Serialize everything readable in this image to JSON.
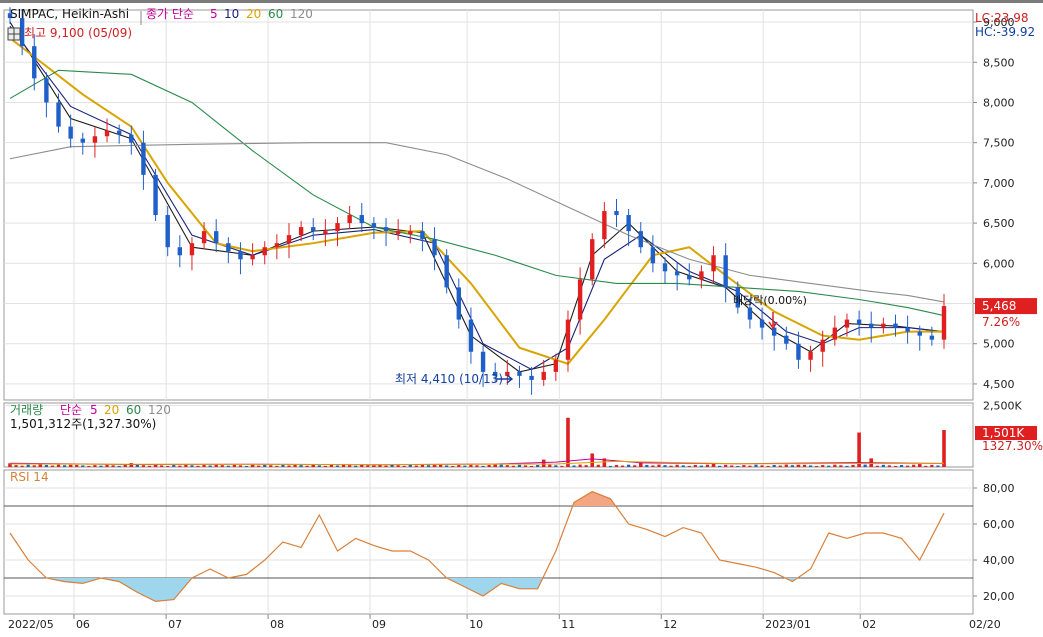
{
  "chart_data": [
    {
      "type": "candlestick",
      "panel": "price",
      "legend": {
        "symbol": "SIMPAC, Heikin-Ashi",
        "ma_title": "종가 단순",
        "ma_periods": [
          "5",
          "10",
          "20",
          "60",
          "120"
        ]
      },
      "top_right": {
        "lc": "LC:23.98",
        "hc": "HC:-39.92"
      },
      "annotations": {
        "high": "최고 9,100 (05/09)",
        "low": "최저 4,410 (10/13)",
        "marker": "배당락(0.00%)"
      },
      "current_price": {
        "value": "5,468",
        "change": "7.26%"
      },
      "y_ticks": [
        "9,000",
        "8,500",
        "8,000",
        "7,500",
        "7,000",
        "6,500",
        "6,000",
        "5,500",
        "5,000",
        "4,500"
      ],
      "ylim": [
        4300,
        9150
      ],
      "candles_close": [
        [
          0,
          9050
        ],
        [
          2,
          8700
        ],
        [
          4,
          8300
        ],
        [
          6,
          8000
        ],
        [
          8,
          7700
        ],
        [
          10,
          7550
        ],
        [
          12,
          7500
        ],
        [
          14,
          7580
        ],
        [
          16,
          7650
        ],
        [
          18,
          7600
        ],
        [
          20,
          7500
        ],
        [
          22,
          7100
        ],
        [
          24,
          6600
        ],
        [
          26,
          6200
        ],
        [
          28,
          6100
        ],
        [
          30,
          6250
        ],
        [
          32,
          6400
        ],
        [
          34,
          6250
        ],
        [
          36,
          6150
        ],
        [
          38,
          6050
        ],
        [
          40,
          6100
        ],
        [
          42,
          6200
        ],
        [
          44,
          6250
        ],
        [
          46,
          6350
        ],
        [
          48,
          6450
        ],
        [
          50,
          6400
        ],
        [
          52,
          6400
        ],
        [
          54,
          6500
        ],
        [
          56,
          6600
        ],
        [
          58,
          6500
        ],
        [
          60,
          6450
        ],
        [
          62,
          6400
        ],
        [
          64,
          6400
        ],
        [
          66,
          6400
        ],
        [
          68,
          6300
        ],
        [
          70,
          6100
        ],
        [
          72,
          5700
        ],
        [
          74,
          5300
        ],
        [
          76,
          4900
        ],
        [
          78,
          4650
        ],
        [
          80,
          4600
        ],
        [
          82,
          4650
        ],
        [
          84,
          4600
        ],
        [
          86,
          4550
        ],
        [
          88,
          4650
        ],
        [
          90,
          4800
        ],
        [
          92,
          5300
        ],
        [
          94,
          5800
        ],
        [
          96,
          6300
        ],
        [
          98,
          6650
        ],
        [
          100,
          6600
        ],
        [
          102,
          6400
        ],
        [
          104,
          6200
        ],
        [
          106,
          6000
        ],
        [
          108,
          5900
        ],
        [
          110,
          5850
        ],
        [
          112,
          5800
        ],
        [
          114,
          5900
        ],
        [
          116,
          6100
        ],
        [
          118,
          5700
        ],
        [
          120,
          5450
        ],
        [
          122,
          5300
        ],
        [
          124,
          5200
        ],
        [
          126,
          5100
        ],
        [
          128,
          5000
        ],
        [
          130,
          4800
        ],
        [
          132,
          4900
        ],
        [
          134,
          5050
        ],
        [
          136,
          5200
        ],
        [
          138,
          5300
        ],
        [
          140,
          5250
        ],
        [
          142,
          5200
        ],
        [
          144,
          5250
        ],
        [
          146,
          5200
        ],
        [
          148,
          5150
        ],
        [
          150,
          5100
        ],
        [
          152,
          5050
        ],
        [
          154,
          5468
        ]
      ],
      "ma_series": [
        {
          "name": "5",
          "color": "#1c1c1c",
          "values": [
            [
              0,
              9000
            ],
            [
              10,
              7800
            ],
            [
              20,
              7550
            ],
            [
              30,
              6200
            ],
            [
              40,
              6100
            ],
            [
              50,
              6400
            ],
            [
              60,
              6450
            ],
            [
              68,
              6380
            ],
            [
              76,
              5100
            ],
            [
              84,
              4650
            ],
            [
              90,
              4750
            ],
            [
              96,
              6100
            ],
            [
              102,
              6500
            ],
            [
              110,
              5900
            ],
            [
              118,
              5700
            ],
            [
              126,
              5150
            ],
            [
              132,
              4900
            ],
            [
              138,
              5250
            ],
            [
              146,
              5220
            ],
            [
              154,
              5150
            ]
          ]
        },
        {
          "name": "10",
          "color": "#1a237e",
          "values": [
            [
              0,
              8950
            ],
            [
              10,
              7950
            ],
            [
              20,
              7600
            ],
            [
              30,
              6350
            ],
            [
              40,
              6100
            ],
            [
              50,
              6350
            ],
            [
              60,
              6420
            ],
            [
              70,
              6250
            ],
            [
              78,
              5000
            ],
            [
              86,
              4680
            ],
            [
              92,
              4950
            ],
            [
              98,
              6050
            ],
            [
              104,
              6350
            ],
            [
              112,
              5900
            ],
            [
              120,
              5650
            ],
            [
              128,
              5150
            ],
            [
              134,
              5000
            ],
            [
              140,
              5200
            ],
            [
              148,
              5200
            ],
            [
              154,
              5150
            ]
          ]
        },
        {
          "name": "20",
          "color": "#d8a400",
          "values": [
            [
              0,
              8800
            ],
            [
              12,
              8100
            ],
            [
              20,
              7700
            ],
            [
              26,
              7000
            ],
            [
              34,
              6250
            ],
            [
              40,
              6150
            ],
            [
              50,
              6250
            ],
            [
              60,
              6380
            ],
            [
              68,
              6400
            ],
            [
              76,
              5750
            ],
            [
              84,
              4950
            ],
            [
              92,
              4750
            ],
            [
              98,
              5300
            ],
            [
              106,
              6100
            ],
            [
              112,
              6200
            ],
            [
              118,
              5850
            ],
            [
              126,
              5400
            ],
            [
              134,
              5100
            ],
            [
              140,
              5050
            ],
            [
              148,
              5150
            ],
            [
              154,
              5150
            ]
          ]
        },
        {
          "name": "60",
          "color": "#2a8a4a",
          "values": [
            [
              0,
              8050
            ],
            [
              8,
              8400
            ],
            [
              20,
              8350
            ],
            [
              30,
              8000
            ],
            [
              40,
              7400
            ],
            [
              50,
              6850
            ],
            [
              60,
              6450
            ],
            [
              70,
              6300
            ],
            [
              80,
              6100
            ],
            [
              90,
              5850
            ],
            [
              100,
              5750
            ],
            [
              110,
              5750
            ],
            [
              120,
              5700
            ],
            [
              130,
              5650
            ],
            [
              140,
              5550
            ],
            [
              148,
              5450
            ],
            [
              154,
              5350
            ]
          ]
        },
        {
          "name": "120",
          "color": "#8c8c8c",
          "values": [
            [
              0,
              7300
            ],
            [
              10,
              7450
            ],
            [
              30,
              7480
            ],
            [
              50,
              7500
            ],
            [
              62,
              7500
            ],
            [
              72,
              7350
            ],
            [
              82,
              7050
            ],
            [
              92,
              6700
            ],
            [
              102,
              6350
            ],
            [
              112,
              6050
            ],
            [
              122,
              5850
            ],
            [
              132,
              5750
            ],
            [
              142,
              5650
            ],
            [
              148,
              5600
            ],
            [
              154,
              5520
            ]
          ]
        }
      ]
    },
    {
      "type": "bar",
      "panel": "volume",
      "legend": {
        "title": "거래량",
        "ma_title": "단순",
        "ma_periods": [
          "5",
          "20",
          "60",
          "120"
        ],
        "value": "1,501,312주(1,327.30%)"
      },
      "y_ticks": [
        "2,500K"
      ],
      "ylim": [
        0,
        2600
      ],
      "current": {
        "value": "1,501K",
        "pct": "1327.30%"
      },
      "spikes": [
        [
          0,
          150
        ],
        [
          5,
          120
        ],
        [
          10,
          90
        ],
        [
          20,
          160
        ],
        [
          24,
          90
        ],
        [
          40,
          100
        ],
        [
          50,
          80
        ],
        [
          60,
          60
        ],
        [
          70,
          80
        ],
        [
          80,
          100
        ],
        [
          88,
          300
        ],
        [
          92,
          2000
        ],
        [
          96,
          550
        ],
        [
          98,
          350
        ],
        [
          104,
          200
        ],
        [
          116,
          150
        ],
        [
          130,
          90
        ],
        [
          140,
          1400
        ],
        [
          142,
          350
        ],
        [
          150,
          120
        ],
        [
          154,
          1501
        ]
      ]
    },
    {
      "type": "line",
      "panel": "rsi",
      "legend": {
        "title": "RSI 14"
      },
      "y_ticks": [
        "80,00",
        "60,00",
        "40,00",
        "20,00"
      ],
      "ylim": [
        10,
        90
      ],
      "levels": [
        70,
        30
      ],
      "values": [
        [
          0,
          55
        ],
        [
          3,
          40
        ],
        [
          6,
          30
        ],
        [
          9,
          28
        ],
        [
          12,
          27
        ],
        [
          15,
          30
        ],
        [
          18,
          28
        ],
        [
          21,
          22
        ],
        [
          24,
          17
        ],
        [
          27,
          18
        ],
        [
          30,
          30
        ],
        [
          33,
          35
        ],
        [
          36,
          30
        ],
        [
          39,
          32
        ],
        [
          42,
          40
        ],
        [
          45,
          50
        ],
        [
          48,
          47
        ],
        [
          51,
          65
        ],
        [
          54,
          45
        ],
        [
          57,
          52
        ],
        [
          60,
          48
        ],
        [
          63,
          45
        ],
        [
          66,
          45
        ],
        [
          69,
          40
        ],
        [
          72,
          30
        ],
        [
          75,
          25
        ],
        [
          78,
          20
        ],
        [
          81,
          27
        ],
        [
          84,
          24
        ],
        [
          87,
          24
        ],
        [
          90,
          45
        ],
        [
          93,
          72
        ],
        [
          96,
          78
        ],
        [
          99,
          74
        ],
        [
          102,
          60
        ],
        [
          105,
          57
        ],
        [
          108,
          53
        ],
        [
          111,
          58
        ],
        [
          114,
          55
        ],
        [
          117,
          40
        ],
        [
          120,
          38
        ],
        [
          123,
          36
        ],
        [
          126,
          33
        ],
        [
          129,
          28
        ],
        [
          132,
          35
        ],
        [
          135,
          55
        ],
        [
          138,
          52
        ],
        [
          141,
          55
        ],
        [
          144,
          55
        ],
        [
          147,
          52
        ],
        [
          150,
          40
        ],
        [
          154,
          66
        ]
      ]
    }
  ],
  "x_ticks": [
    {
      "label": "2022/05",
      "x": 0
    },
    {
      "label": "06",
      "x": 14
    },
    {
      "label": "07",
      "x": 33
    },
    {
      "label": "08",
      "x": 54
    },
    {
      "label": "09",
      "x": 75
    },
    {
      "label": "10",
      "x": 95
    },
    {
      "label": "11",
      "x": 114
    },
    {
      "label": "12",
      "x": 135
    },
    {
      "label": "2023/01",
      "x": 156
    },
    {
      "label": "02",
      "x": 176
    },
    {
      "label": "02/20",
      "x": 198
    }
  ],
  "colors": {
    "up": "#e02020",
    "down": "#1f5fc8",
    "rsi_line": "#d9803a",
    "rsi_over": "#f4a582",
    "rsi_under": "#9ed6ee"
  }
}
